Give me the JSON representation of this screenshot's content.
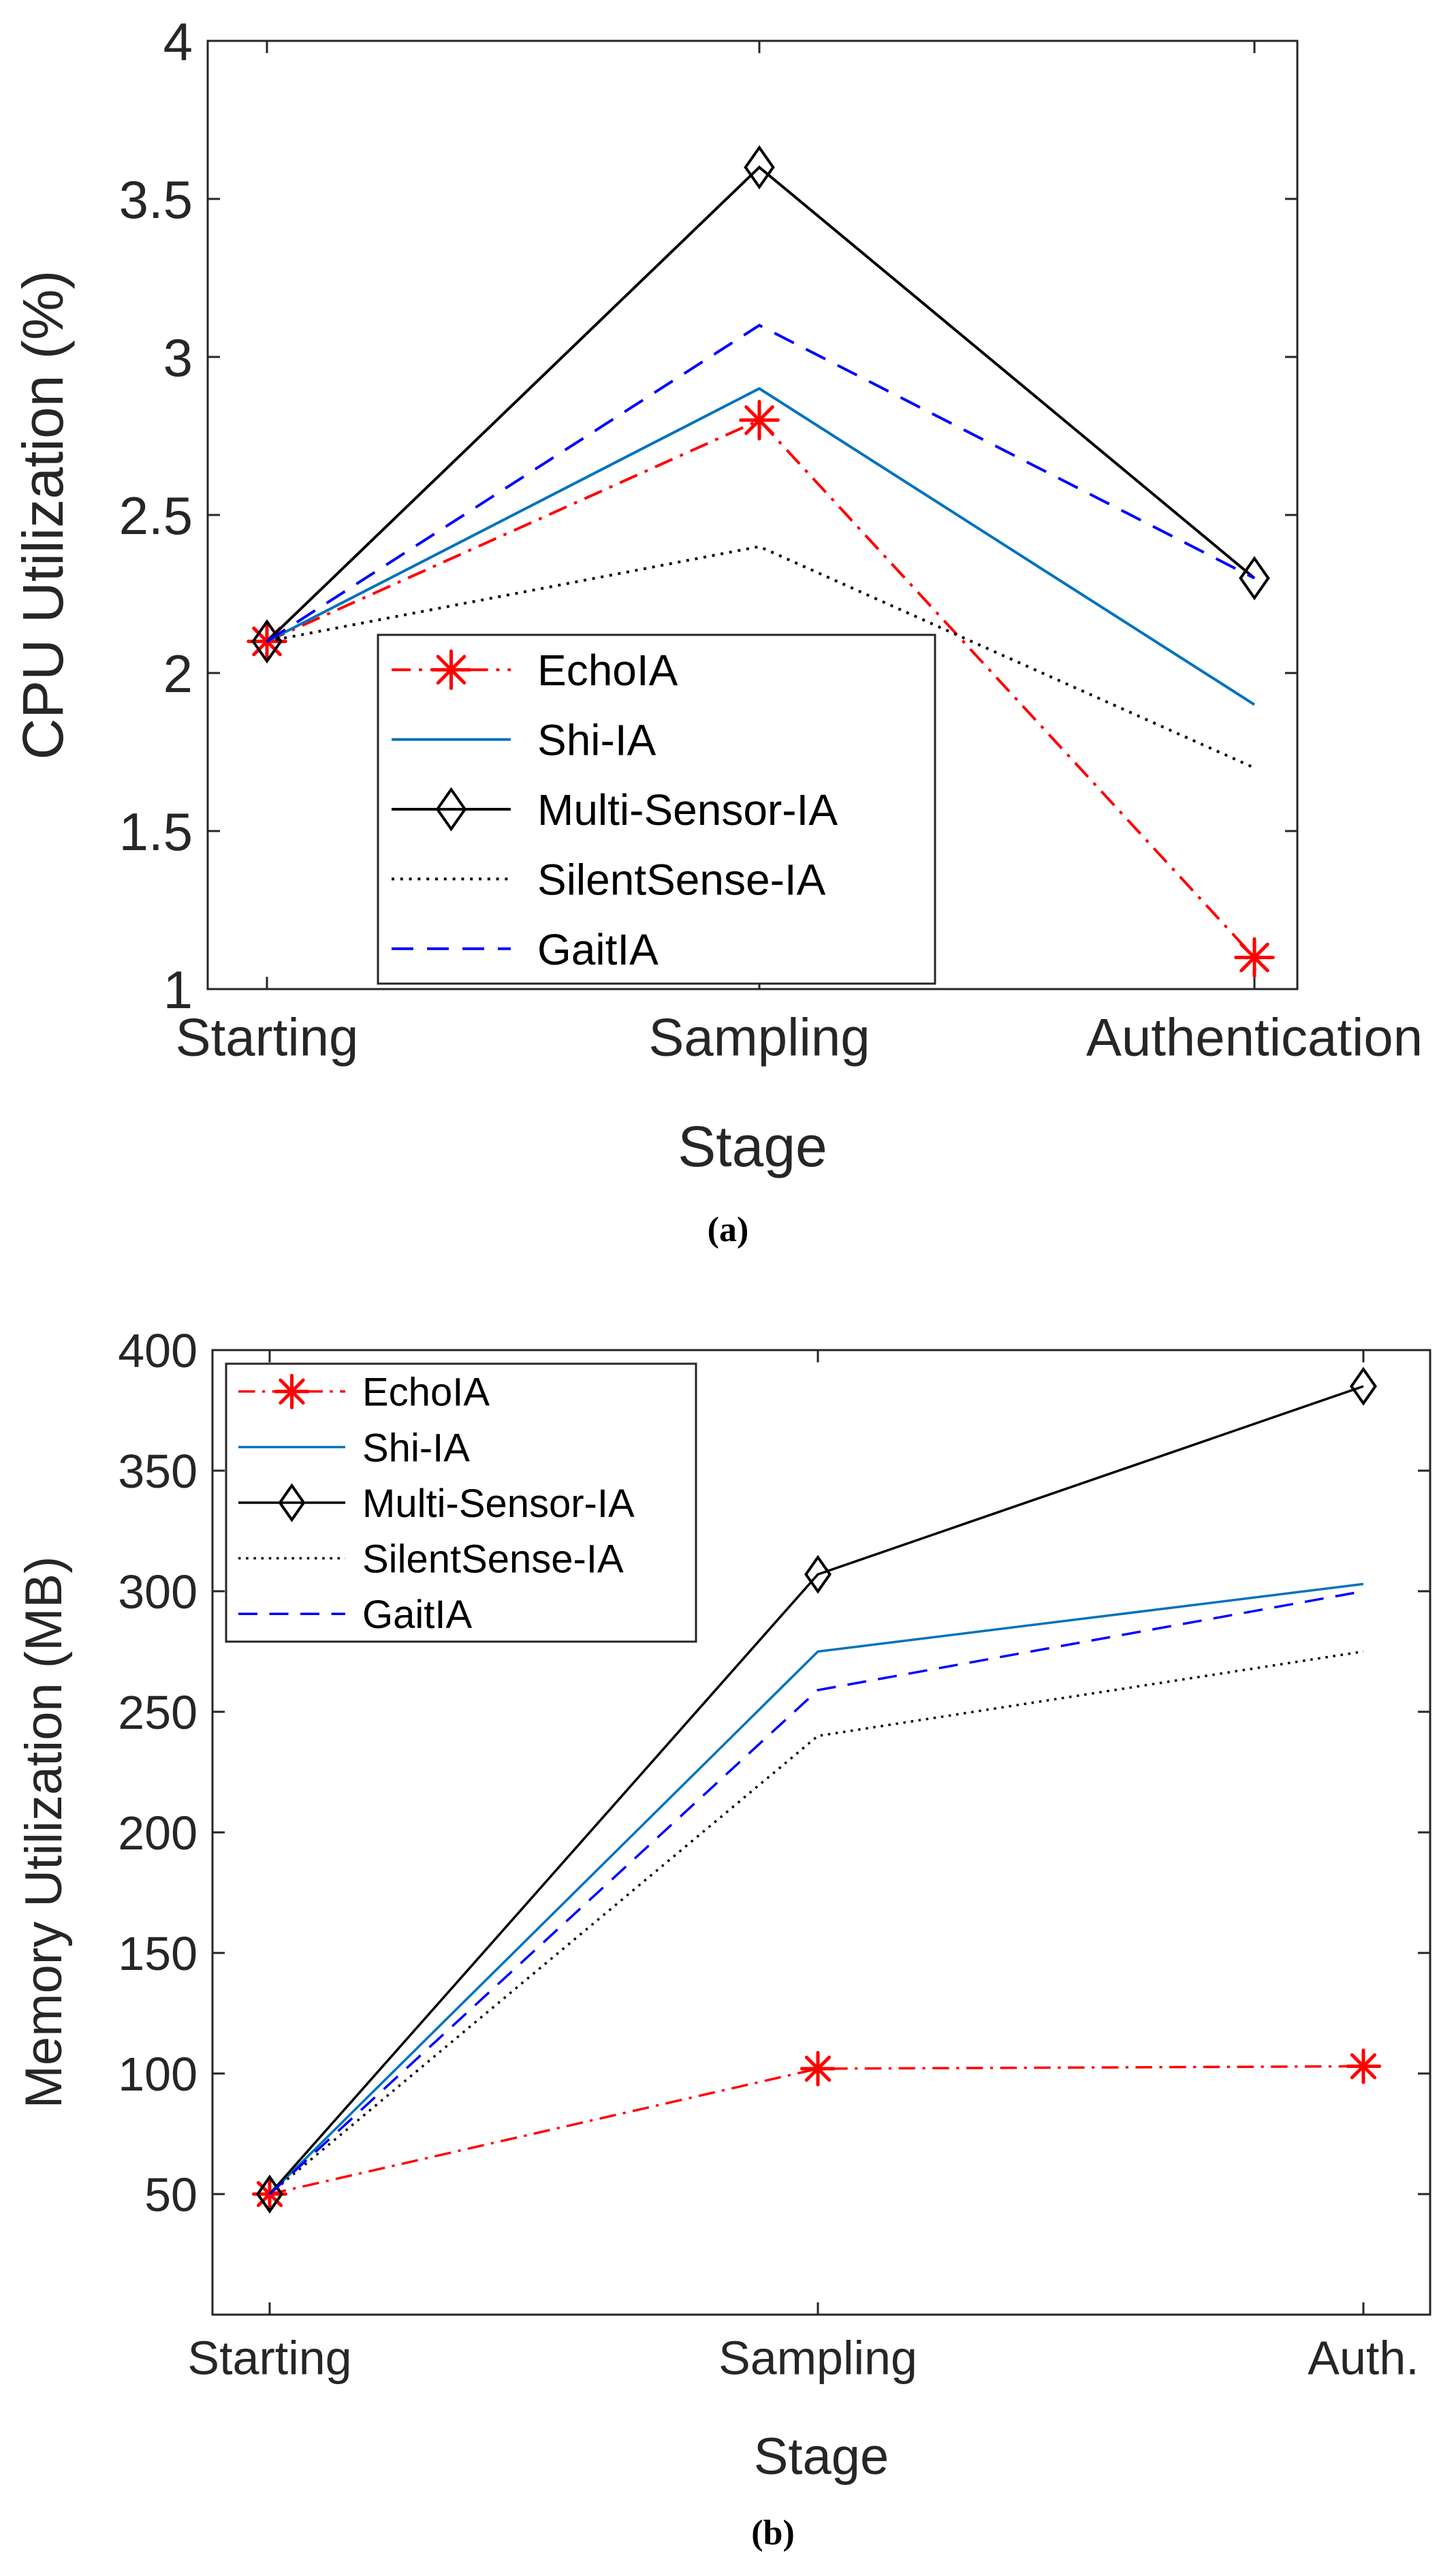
{
  "figure": {
    "panels": [
      {
        "caption": "(a)"
      },
      {
        "caption": "(b)"
      }
    ]
  },
  "chart_data": [
    {
      "type": "line",
      "categories": [
        "Starting",
        "Sampling",
        "Authentication"
      ],
      "xlabel": "Stage",
      "ylabel": "CPU Utilization (%)",
      "ylim": [
        1,
        4
      ],
      "yticks": [
        1,
        1.5,
        2,
        2.5,
        3,
        3.5,
        4
      ],
      "ytick_labels": [
        "1",
        "1.5",
        "2",
        "2.5",
        "3",
        "3.5",
        "4"
      ],
      "grid": false,
      "legend": "bottom-center",
      "series": [
        {
          "name": "EchoIA",
          "values": [
            2.1,
            2.8,
            1.1
          ],
          "color": "#ff0000",
          "dash": "dashdot",
          "marker": "star"
        },
        {
          "name": "Shi-IA",
          "values": [
            2.1,
            2.9,
            1.9
          ],
          "color": "#0072bd",
          "dash": "solid",
          "marker": "none"
        },
        {
          "name": "Multi-Sensor-IA",
          "values": [
            2.1,
            3.6,
            2.3
          ],
          "color": "#000000",
          "dash": "solid",
          "marker": "diamond"
        },
        {
          "name": "SilentSense-IA",
          "values": [
            2.1,
            2.4,
            1.7
          ],
          "color": "#000000",
          "dash": "dotted",
          "marker": "none"
        },
        {
          "name": "GaitIA",
          "values": [
            2.1,
            3.1,
            2.3
          ],
          "color": "#0000ff",
          "dash": "dashed",
          "marker": "none"
        }
      ]
    },
    {
      "type": "line",
      "categories": [
        "Starting",
        "Sampling",
        "Auth."
      ],
      "xlabel": "Stage",
      "ylabel": "Memory Utilization (MB)",
      "ylim": [
        0,
        400
      ],
      "yticks": [
        50,
        100,
        150,
        200,
        250,
        300,
        350,
        400
      ],
      "ytick_labels": [
        "50",
        "100",
        "150",
        "200",
        "250",
        "300",
        "350",
        "400"
      ],
      "grid": false,
      "legend": "top-left",
      "series": [
        {
          "name": "EchoIA",
          "values": [
            50,
            102,
            103
          ],
          "color": "#ff0000",
          "dash": "dashdot",
          "marker": "star"
        },
        {
          "name": "Shi-IA",
          "values": [
            50,
            275,
            303
          ],
          "color": "#0072bd",
          "dash": "solid",
          "marker": "none"
        },
        {
          "name": "Multi-Sensor-IA",
          "values": [
            50,
            307,
            385
          ],
          "color": "#000000",
          "dash": "solid",
          "marker": "diamond"
        },
        {
          "name": "SilentSense-IA",
          "values": [
            50,
            240,
            275
          ],
          "color": "#000000",
          "dash": "dotted",
          "marker": "none"
        },
        {
          "name": "GaitIA",
          "values": [
            50,
            259,
            300
          ],
          "color": "#0000ff",
          "dash": "dashed",
          "marker": "none"
        }
      ]
    }
  ]
}
